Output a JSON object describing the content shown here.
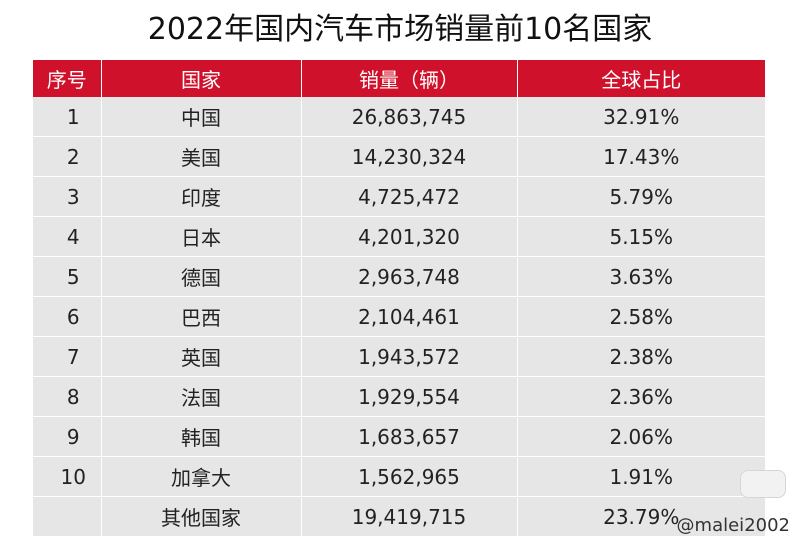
{
  "title": "2022年国内汽车市场销量前10名国家",
  "headers": [
    "序号",
    "国家",
    "销量（辆）",
    "全球占比"
  ],
  "rows": [
    [
      "1",
      "中国",
      "26,863,745",
      "32.91%"
    ],
    [
      "2",
      "美国",
      "14,230,324",
      "17.43%"
    ],
    [
      "3",
      "印度",
      "4,725,472",
      "5.79%"
    ],
    [
      "4",
      "日本",
      "4,201,320",
      "5.15%"
    ],
    [
      "5",
      "德国",
      "2,963,748",
      "3.63%"
    ],
    [
      "6",
      "巴西",
      "2,104,461",
      "2.58%"
    ],
    [
      "7",
      "英国",
      "1,943,572",
      "2.38%"
    ],
    [
      "8",
      "法国",
      "1,929,554",
      "2.36%"
    ],
    [
      "9",
      "韩国",
      "1,683,657",
      "2.06%"
    ],
    [
      "10",
      "加拿大",
      "1,562,965",
      "1.91%"
    ],
    [
      "",
      "其他国家",
      "19,419,715",
      "23.79%"
    ]
  ],
  "watermark": "@malei2002",
  "colors": {
    "header_bg": "#d0112b",
    "row_bg": "#e6e6e6"
  }
}
